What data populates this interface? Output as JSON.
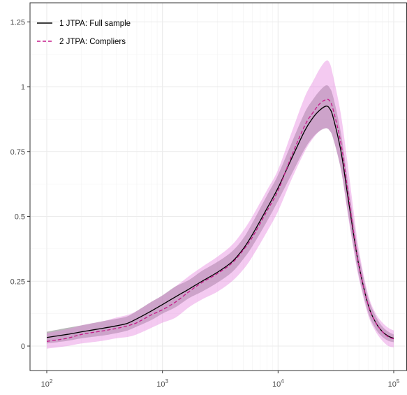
{
  "chart_data": {
    "type": "line",
    "title": "",
    "xlabel": "",
    "ylabel": "",
    "x_scale": "log10",
    "xlim": [
      100,
      100000
    ],
    "ylim": [
      -0.05,
      1.25
    ],
    "grid": true,
    "legend_position": "top-left",
    "x_ticks": [
      {
        "value": 100,
        "base": "10",
        "exp": "2"
      },
      {
        "value": 1000,
        "base": "10",
        "exp": "3"
      },
      {
        "value": 10000,
        "base": "10",
        "exp": "4"
      },
      {
        "value": 100000,
        "base": "10",
        "exp": "5"
      }
    ],
    "y_ticks": [
      {
        "value": 0,
        "label": "0"
      },
      {
        "value": 0.25,
        "label": "0.25"
      },
      {
        "value": 0.5,
        "label": "0.5"
      },
      {
        "value": 0.75,
        "label": "0.75"
      },
      {
        "value": 1,
        "label": "1"
      },
      {
        "value": 1.25,
        "label": "1.25"
      }
    ],
    "series": [
      {
        "name": "1 JTPA: Full sample",
        "color": "#000000",
        "band_color": "#7f7f7f",
        "dash": "solid",
        "x": [
          100,
          150,
          200,
          300,
          400,
          500,
          600,
          800,
          1000,
          1300,
          1700,
          2200,
          3000,
          4000,
          5000,
          6000,
          8000,
          10000,
          13000,
          17000,
          20000,
          23000,
          26000,
          28000,
          30000,
          35000,
          40000,
          45000,
          50000,
          60000,
          70000,
          80000,
          90000,
          100000
        ],
        "y": [
          0.033,
          0.045,
          0.055,
          0.068,
          0.078,
          0.088,
          0.105,
          0.135,
          0.16,
          0.19,
          0.22,
          0.25,
          0.285,
          0.325,
          0.375,
          0.43,
          0.53,
          0.61,
          0.72,
          0.83,
          0.88,
          0.91,
          0.925,
          0.915,
          0.88,
          0.75,
          0.58,
          0.43,
          0.31,
          0.16,
          0.09,
          0.055,
          0.038,
          0.03
        ],
        "lower": [
          0.01,
          0.02,
          0.03,
          0.04,
          0.05,
          0.06,
          0.075,
          0.1,
          0.125,
          0.15,
          0.185,
          0.21,
          0.245,
          0.285,
          0.335,
          0.385,
          0.48,
          0.56,
          0.66,
          0.76,
          0.805,
          0.83,
          0.84,
          0.83,
          0.8,
          0.68,
          0.52,
          0.38,
          0.27,
          0.13,
          0.065,
          0.035,
          0.02,
          0.015
        ],
        "upper": [
          0.055,
          0.07,
          0.08,
          0.095,
          0.105,
          0.115,
          0.135,
          0.17,
          0.195,
          0.23,
          0.255,
          0.29,
          0.325,
          0.365,
          0.415,
          0.475,
          0.58,
          0.66,
          0.78,
          0.9,
          0.95,
          0.985,
          1.005,
          0.995,
          0.96,
          0.82,
          0.64,
          0.48,
          0.35,
          0.19,
          0.115,
          0.075,
          0.055,
          0.045
        ]
      },
      {
        "name": "2 JTPA: Compliers",
        "color": "#c51b8a",
        "band_color": "#e78ae0",
        "dash": "dashed",
        "x": [
          100,
          150,
          200,
          300,
          400,
          500,
          600,
          800,
          1000,
          1300,
          1700,
          2200,
          3000,
          4000,
          5000,
          6000,
          8000,
          10000,
          13000,
          17000,
          20000,
          23000,
          26000,
          28000,
          30000,
          35000,
          40000,
          45000,
          50000,
          60000,
          70000,
          80000,
          90000,
          100000
        ],
        "y": [
          0.018,
          0.03,
          0.045,
          0.058,
          0.068,
          0.078,
          0.09,
          0.12,
          0.14,
          0.17,
          0.21,
          0.245,
          0.28,
          0.32,
          0.37,
          0.42,
          0.52,
          0.6,
          0.73,
          0.85,
          0.9,
          0.935,
          0.95,
          0.945,
          0.91,
          0.78,
          0.6,
          0.44,
          0.31,
          0.16,
          0.09,
          0.055,
          0.035,
          0.028
        ],
        "lower": [
          -0.01,
          0.0,
          0.01,
          0.02,
          0.03,
          0.035,
          0.045,
          0.07,
          0.09,
          0.11,
          0.15,
          0.18,
          0.21,
          0.25,
          0.295,
          0.345,
          0.44,
          0.52,
          0.64,
          0.75,
          0.8,
          0.83,
          0.84,
          0.83,
          0.8,
          0.68,
          0.51,
          0.37,
          0.26,
          0.12,
          0.055,
          0.02,
          0.0,
          -0.005
        ],
        "upper": [
          0.05,
          0.065,
          0.08,
          0.095,
          0.11,
          0.12,
          0.135,
          0.17,
          0.195,
          0.23,
          0.27,
          0.305,
          0.345,
          0.39,
          0.445,
          0.5,
          0.6,
          0.68,
          0.82,
          0.96,
          1.02,
          1.07,
          1.1,
          1.09,
          1.04,
          0.89,
          0.7,
          0.52,
          0.37,
          0.2,
          0.125,
          0.09,
          0.07,
          0.06
        ]
      }
    ]
  }
}
